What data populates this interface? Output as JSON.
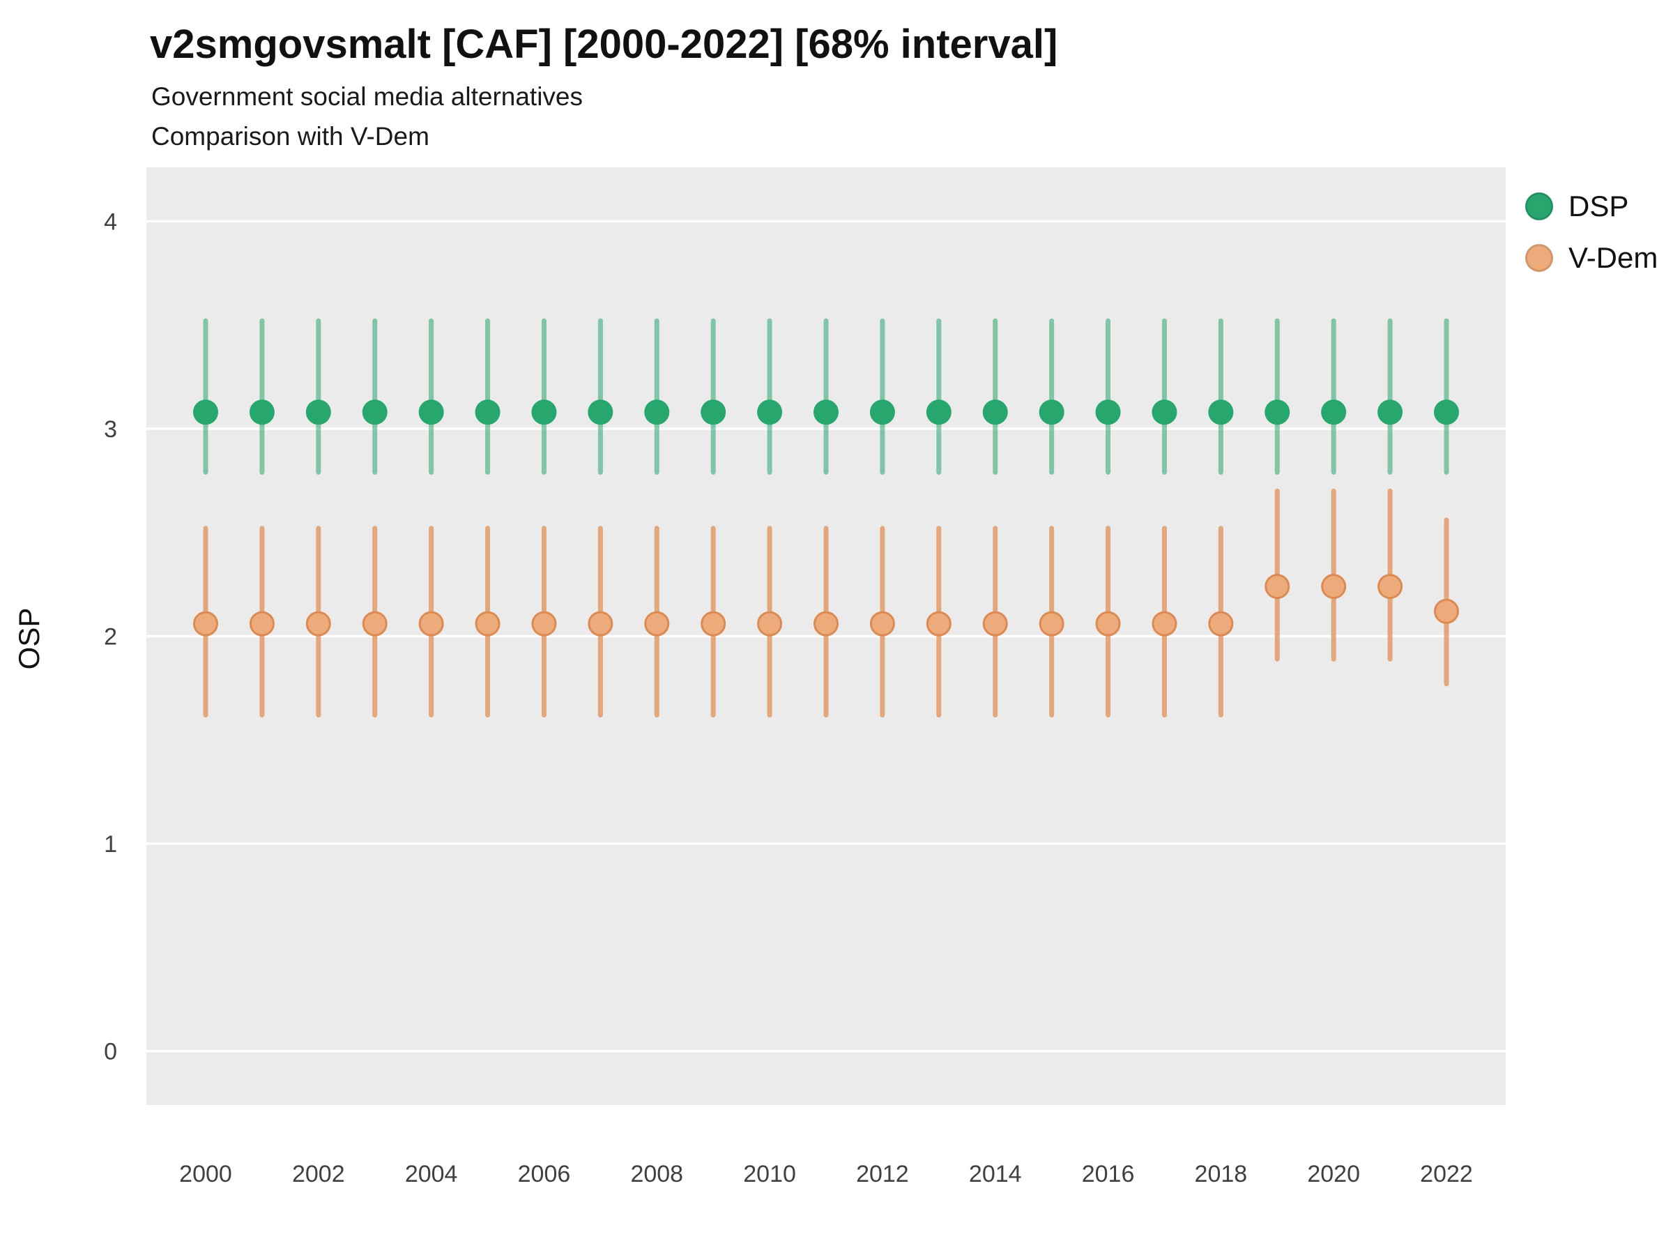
{
  "title": "v2smgovsmalt [CAF] [2000-2022] [68% interval]",
  "subtitle1": "Government social media alternatives",
  "subtitle2": "Comparison with V-Dem",
  "ylabel": "OSP",
  "colors": {
    "panel_bg": "#EBEBEB",
    "gridline": "#FFFFFF",
    "tick_text": "#404040",
    "dsp_green": "#27A66E",
    "vdem_orange_fill": "#EDAB7C",
    "vdem_orange_stroke": "#DC8A52",
    "vdem_orange_line": "#E29B68"
  },
  "legend": [
    {
      "label": "DSP",
      "color": "#27A66E"
    },
    {
      "label": "V-Dem",
      "color": "#EDAB7C"
    }
  ],
  "chart_data": {
    "type": "scatter",
    "subtype": "pointrange-interval",
    "title": "v2smgovsmalt [CAF] [2000-2022] [68% interval]",
    "xlabel": "",
    "ylabel": "OSP",
    "ylim": [
      -0.26,
      4.26
    ],
    "yticks": [
      0,
      1,
      2,
      3,
      4
    ],
    "xticks": [
      2000,
      2002,
      2004,
      2006,
      2008,
      2010,
      2012,
      2014,
      2016,
      2018,
      2020,
      2022
    ],
    "legend_position": "right",
    "grid": "major-horizontal",
    "x": [
      2000,
      2001,
      2002,
      2003,
      2004,
      2005,
      2006,
      2007,
      2008,
      2009,
      2010,
      2011,
      2012,
      2013,
      2014,
      2015,
      2016,
      2017,
      2018,
      2019,
      2020,
      2021,
      2022
    ],
    "series": [
      {
        "name": "DSP",
        "est": [
          3.08,
          3.08,
          3.08,
          3.08,
          3.08,
          3.08,
          3.08,
          3.08,
          3.08,
          3.08,
          3.08,
          3.08,
          3.08,
          3.08,
          3.08,
          3.08,
          3.08,
          3.08,
          3.08,
          3.08,
          3.08,
          3.08,
          3.08
        ],
        "lo": [
          2.79,
          2.79,
          2.79,
          2.79,
          2.79,
          2.79,
          2.79,
          2.79,
          2.79,
          2.79,
          2.79,
          2.79,
          2.79,
          2.79,
          2.79,
          2.79,
          2.79,
          2.79,
          2.79,
          2.79,
          2.79,
          2.79,
          2.79
        ],
        "hi": [
          3.52,
          3.52,
          3.52,
          3.52,
          3.52,
          3.52,
          3.52,
          3.52,
          3.52,
          3.52,
          3.52,
          3.52,
          3.52,
          3.52,
          3.52,
          3.52,
          3.52,
          3.52,
          3.52,
          3.52,
          3.52,
          3.52,
          3.52
        ]
      },
      {
        "name": "V-Dem",
        "est": [
          2.06,
          2.06,
          2.06,
          2.06,
          2.06,
          2.06,
          2.06,
          2.06,
          2.06,
          2.06,
          2.06,
          2.06,
          2.06,
          2.06,
          2.06,
          2.06,
          2.06,
          2.06,
          2.06,
          2.24,
          2.24,
          2.24,
          2.12
        ],
        "lo": [
          1.62,
          1.62,
          1.62,
          1.62,
          1.62,
          1.62,
          1.62,
          1.62,
          1.62,
          1.62,
          1.62,
          1.62,
          1.62,
          1.62,
          1.62,
          1.62,
          1.62,
          1.62,
          1.62,
          1.89,
          1.89,
          1.89,
          1.77
        ],
        "hi": [
          2.52,
          2.52,
          2.52,
          2.52,
          2.52,
          2.52,
          2.52,
          2.52,
          2.52,
          2.52,
          2.52,
          2.52,
          2.52,
          2.52,
          2.52,
          2.52,
          2.52,
          2.52,
          2.52,
          2.7,
          2.7,
          2.7,
          2.56
        ]
      }
    ]
  }
}
